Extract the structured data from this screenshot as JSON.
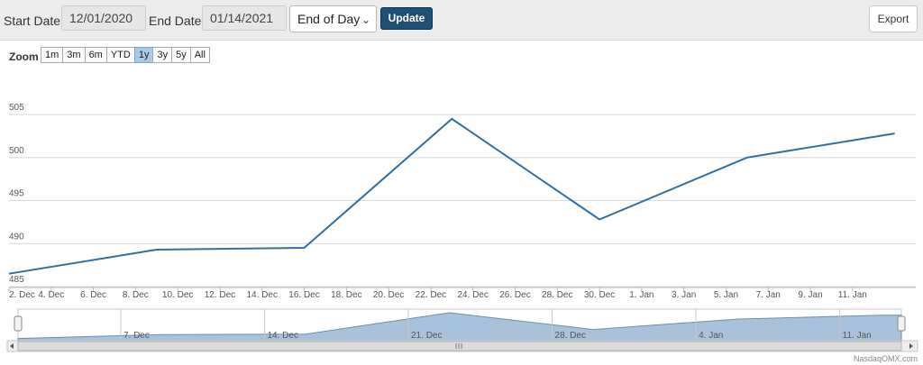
{
  "toolbar": {
    "start_label": "Start Date:",
    "start_value": "12/01/2020",
    "end_label": "End Date:",
    "end_value": "01/14/2021",
    "period_value": "End of Day",
    "update_label": "Update",
    "export_label": "Export"
  },
  "zoom": {
    "label": "Zoom",
    "options": [
      "1m",
      "3m",
      "6m",
      "YTD",
      "1y",
      "3y",
      "5y",
      "All"
    ],
    "active": "1y"
  },
  "credit": "NasdaqOMX.com",
  "colors": {
    "line": "#2f6fa3",
    "navigator_fill": "#a9c2dc",
    "update_button": "#1e4f74"
  },
  "chart_data": {
    "type": "line",
    "x": [
      "2020-12-02",
      "2020-12-09",
      "2020-12-16",
      "2020-12-23",
      "2020-12-30",
      "2021-01-06",
      "2021-01-13"
    ],
    "series": [
      {
        "values": [
          486.5,
          489.3,
          489.5,
          504.5,
          492.8,
          500.0,
          502.8
        ]
      }
    ],
    "ylim": [
      485,
      507
    ],
    "yticks": [
      485,
      490,
      495,
      500,
      505
    ],
    "xtick_labels": [
      "2. Dec",
      "4. Dec",
      "6. Dec",
      "8. Dec",
      "10. Dec",
      "12. Dec",
      "14. Dec",
      "16. Dec",
      "18. Dec",
      "20. Dec",
      "22. Dec",
      "24. Dec",
      "26. Dec",
      "28. Dec",
      "30. Dec",
      "1. Jan",
      "3. Jan",
      "5. Jan",
      "7. Jan",
      "9. Jan",
      "11. Jan"
    ],
    "xtick_dates": [
      "2020-12-02",
      "2020-12-04",
      "2020-12-06",
      "2020-12-08",
      "2020-12-10",
      "2020-12-12",
      "2020-12-14",
      "2020-12-16",
      "2020-12-18",
      "2020-12-20",
      "2020-12-22",
      "2020-12-24",
      "2020-12-26",
      "2020-12-28",
      "2020-12-30",
      "2021-01-01",
      "2021-01-03",
      "2021-01-05",
      "2021-01-07",
      "2021-01-09",
      "2021-01-11"
    ],
    "grid": true,
    "navigator": {
      "tick_labels": [
        "7. Dec",
        "14. Dec",
        "21. Dec",
        "28. Dec",
        "4. Jan",
        "11. Jan"
      ],
      "tick_dates": [
        "2020-12-07",
        "2020-12-14",
        "2020-12-21",
        "2020-12-28",
        "2021-01-04",
        "2021-01-11"
      ]
    }
  }
}
